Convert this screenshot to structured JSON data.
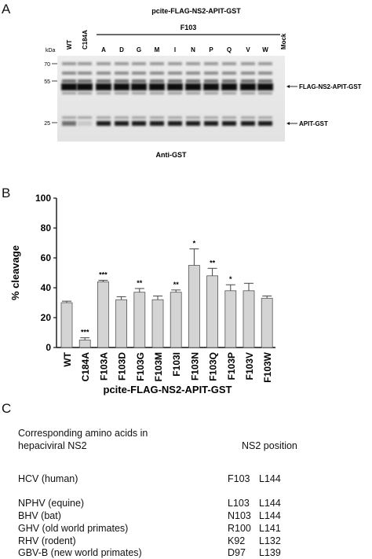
{
  "panels": {
    "a": "A",
    "b": "B",
    "c": "C"
  },
  "blot": {
    "construct_title": "pcite-FLAG-NS2-APIT-GST",
    "group_label": "F103",
    "kda_label": "kDa",
    "markers": [
      "70",
      "55",
      "25"
    ],
    "lanes": [
      "WT",
      "C184A",
      "A",
      "D",
      "G",
      "M",
      "I",
      "N",
      "P",
      "Q",
      "V",
      "W",
      "Mock"
    ],
    "band_labels": {
      "upper": "FLAG-NS2-APIT-GST",
      "lower": "APIT-GST"
    },
    "antibody": "Anti-GST"
  },
  "chart_data": {
    "type": "bar",
    "categories": [
      "WT",
      "C184A",
      "F103A",
      "F103D",
      "F103G",
      "F103M",
      "F103I",
      "F103N",
      "F103Q",
      "F103P",
      "F103V",
      "F103W"
    ],
    "values": [
      30,
      5,
      44,
      32,
      37,
      32,
      37,
      55,
      48,
      38,
      38,
      33
    ],
    "errors": [
      1,
      1.5,
      1,
      2,
      2.5,
      2.5,
      1.5,
      11,
      5,
      4,
      5,
      1.5
    ],
    "significance": [
      "",
      "***",
      "***",
      "",
      "**",
      "",
      "**",
      "*",
      "**",
      "*",
      "",
      ""
    ],
    "ylabel": "% cleavage",
    "xlabel": "pcite-FLAG-NS2-APIT-GST",
    "ylim": [
      0,
      100
    ],
    "yticks": [
      "0",
      "20",
      "40",
      "60",
      "80",
      "100"
    ],
    "bar_color": "#d4d4d4"
  },
  "table": {
    "header_left_1": "Corresponding amino acids in",
    "header_left_2": "hepaciviral NS2",
    "header_right": "NS2 position",
    "rows": [
      {
        "virus": "HCV (human)",
        "pos1": "F103",
        "pos2": "L144"
      },
      {
        "virus": "NPHV (equine)",
        "pos1": "L103",
        "pos2": "L144"
      },
      {
        "virus": "BHV (bat)",
        "pos1": "N103",
        "pos2": "L144"
      },
      {
        "virus": "GHV (old world primates)",
        "pos1": "R100",
        "pos2": "L141"
      },
      {
        "virus": "RHV (rodent)",
        "pos1": "K92",
        "pos2": "L132"
      },
      {
        "virus": "GBV-B (new world primates)",
        "pos1": "D97",
        "pos2": "L139"
      }
    ]
  }
}
